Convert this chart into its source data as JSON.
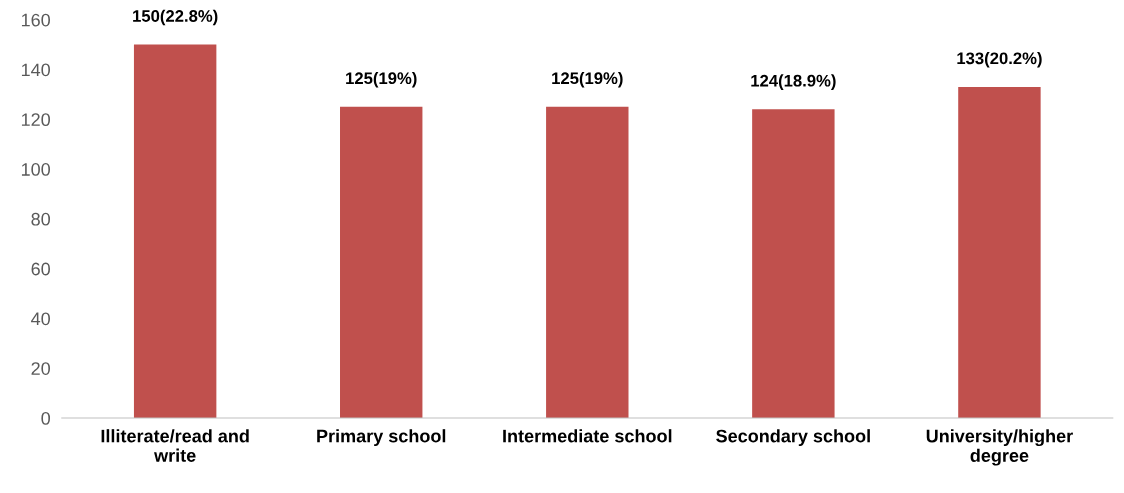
{
  "chart_data": {
    "type": "bar",
    "categories": [
      "Illiterate/read and write",
      "Primary school",
      "Intermediate school",
      "Secondary school",
      "University/higher degree"
    ],
    "values": [
      150,
      125,
      125,
      124,
      133
    ],
    "value_labels": [
      "150(22.8%)",
      "125(19%)",
      "125(19%)",
      "124(18.9%)",
      "133(20.2%)"
    ],
    "color": "#c0504d",
    "ylim": [
      0,
      160
    ],
    "yticks": [
      0,
      20,
      40,
      60,
      80,
      100,
      120,
      140,
      160
    ],
    "grid": false,
    "legend": false
  }
}
